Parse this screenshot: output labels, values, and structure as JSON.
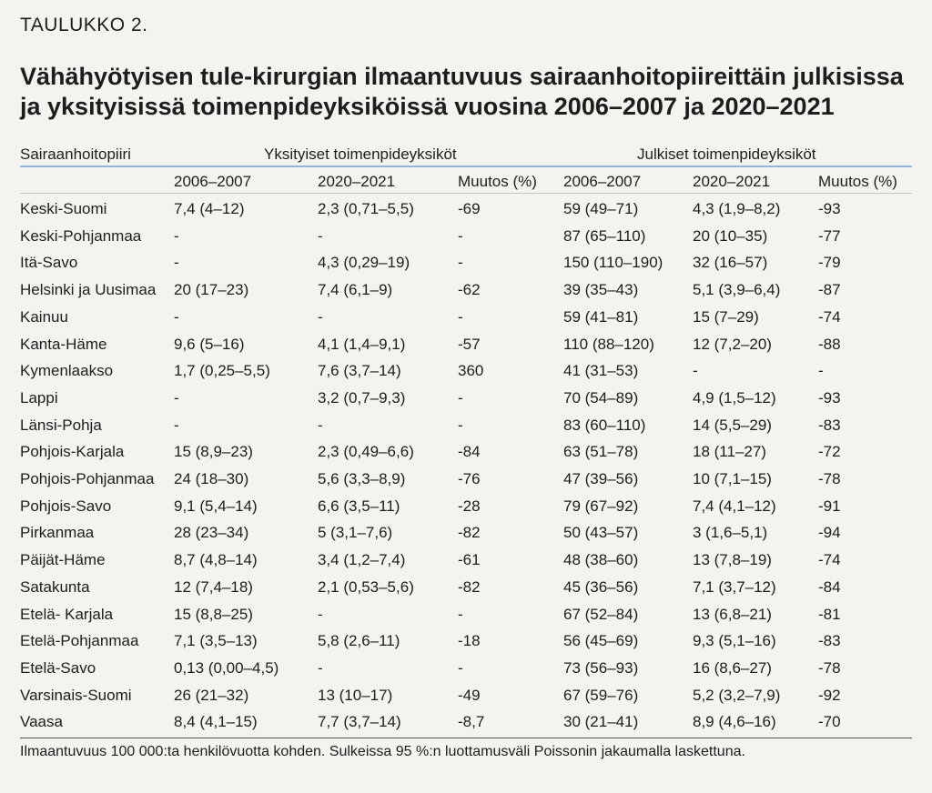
{
  "label": "TAULUKKO 2.",
  "title_lines": [
    "Vähähyötyisen tule-kirurgian ilmaantuvuus sairaanhoitopiireittäin julkisissa",
    "ja yksityisissä toimenpideyksiköissä vuosina 2006–2007 ja 2020–2021"
  ],
  "header": {
    "district": "Sairaanhoitopiiri",
    "private": "Yksityiset toimenpideyksiköt",
    "public": "Julkiset toimenpideyksiköt",
    "columns": [
      "2006–2007",
      "2020–2021",
      "Muutos (%)",
      "2006–2007",
      "2020–2021",
      "Muutos (%)"
    ]
  },
  "rows": [
    {
      "name": "Keski-Suomi",
      "cells": [
        "7,4 (4–12)",
        "2,3 (0,71–5,5)",
        "-69",
        "59 (49–71)",
        "4,3 (1,9–8,2)",
        "-93"
      ]
    },
    {
      "name": "Keski-Pohjanmaa",
      "cells": [
        "-",
        "-",
        "-",
        "87 (65–110)",
        "20 (10–35)",
        "-77"
      ]
    },
    {
      "name": "Itä-Savo",
      "cells": [
        "-",
        "4,3 (0,29–19)",
        "-",
        "150 (110–190)",
        "32 (16–57)",
        "-79"
      ]
    },
    {
      "name": "Helsinki ja Uusimaa",
      "cells": [
        "20 (17–23)",
        "7,4 (6,1–9)",
        "-62",
        "39 (35–43)",
        "5,1 (3,9–6,4)",
        "-87"
      ]
    },
    {
      "name": "Kainuu",
      "cells": [
        "-",
        "-",
        "-",
        "59 (41–81)",
        "15 (7–29)",
        "-74"
      ]
    },
    {
      "name": "Kanta-Häme",
      "cells": [
        "9,6 (5–16)",
        "4,1 (1,4–9,1)",
        "-57",
        "110 (88–120)",
        "12 (7,2–20)",
        "-88"
      ]
    },
    {
      "name": "Kymenlaakso",
      "cells": [
        "1,7 (0,25–5,5)",
        "7,6 (3,7–14)",
        "360",
        "41 (31–53)",
        "-",
        "-"
      ]
    },
    {
      "name": "Lappi",
      "cells": [
        "-",
        "3,2 (0,7–9,3)",
        "-",
        "70 (54–89)",
        "4,9 (1,5–12)",
        "-93"
      ]
    },
    {
      "name": "Länsi-Pohja",
      "cells": [
        "-",
        "-",
        "-",
        "83 (60–110)",
        "14 (5,5–29)",
        "-83"
      ]
    },
    {
      "name": "Pohjois-Karjala",
      "cells": [
        "15 (8,9–23)",
        "2,3 (0,49–6,6)",
        "-84",
        "63 (51–78)",
        "18 (11–27)",
        "-72"
      ]
    },
    {
      "name": "Pohjois-Pohjanmaa",
      "cells": [
        "24 (18–30)",
        "5,6 (3,3–8,9)",
        "-76",
        "47 (39–56)",
        "10 (7,1–15)",
        "-78"
      ]
    },
    {
      "name": "Pohjois-Savo",
      "cells": [
        "9,1 (5,4–14)",
        "6,6 (3,5–11)",
        "-28",
        "79 (67–92)",
        "7,4 (4,1–12)",
        "-91"
      ]
    },
    {
      "name": "Pirkanmaa",
      "cells": [
        "28 (23–34)",
        "5 (3,1–7,6)",
        "-82",
        "50 (43–57)",
        "3 (1,6–5,1)",
        "-94"
      ]
    },
    {
      "name": "Päijät-Häme",
      "cells": [
        "8,7 (4,8–14)",
        "3,4 (1,2–7,4)",
        "-61",
        "48 (38–60)",
        "13 (7,8–19)",
        "-74"
      ]
    },
    {
      "name": "Satakunta",
      "cells": [
        "12 (7,4–18)",
        "2,1 (0,53–5,6)",
        "-82",
        "45 (36–56)",
        "7,1 (3,7–12)",
        "-84"
      ]
    },
    {
      "name": "Etelä- Karjala",
      "cells": [
        "15 (8,8–25)",
        "-",
        "-",
        "67 (52–84)",
        "13 (6,8–21)",
        "-81"
      ]
    },
    {
      "name": "Etelä-Pohjanmaa",
      "cells": [
        "7,1 (3,5–13)",
        "5,8 (2,6–11)",
        "-18",
        "56 (45–69)",
        "9,3 (5,1–16)",
        "-83"
      ]
    },
    {
      "name": "Etelä-Savo",
      "cells": [
        "0,13 (0,00–4,5)",
        "-",
        "-",
        "73 (56–93)",
        "16 (8,6–27)",
        "-78"
      ]
    },
    {
      "name": "Varsinais-Suomi",
      "cells": [
        "26 (21–32)",
        "13 (10–17)",
        "-49",
        "67 (59–76)",
        "5,2 (3,2–7,9)",
        "-92"
      ]
    },
    {
      "name": "Vaasa",
      "cells": [
        "8,4 (4,1–15)",
        "7,7 (3,7–14)",
        "-8,7",
        "30 (21–41)",
        "8,9 (4,6–16)",
        "-70"
      ]
    }
  ],
  "footnote": "Ilmaantuvuus 100 000:ta henkilövuotta kohden. Sulkeissa 95 %:n luottamusväli Poissonin jakaumalla laskettuna.",
  "colors": {
    "background": "#f4f3f0",
    "text": "#1d1d1b",
    "header_rule": "#8eb6e0"
  }
}
